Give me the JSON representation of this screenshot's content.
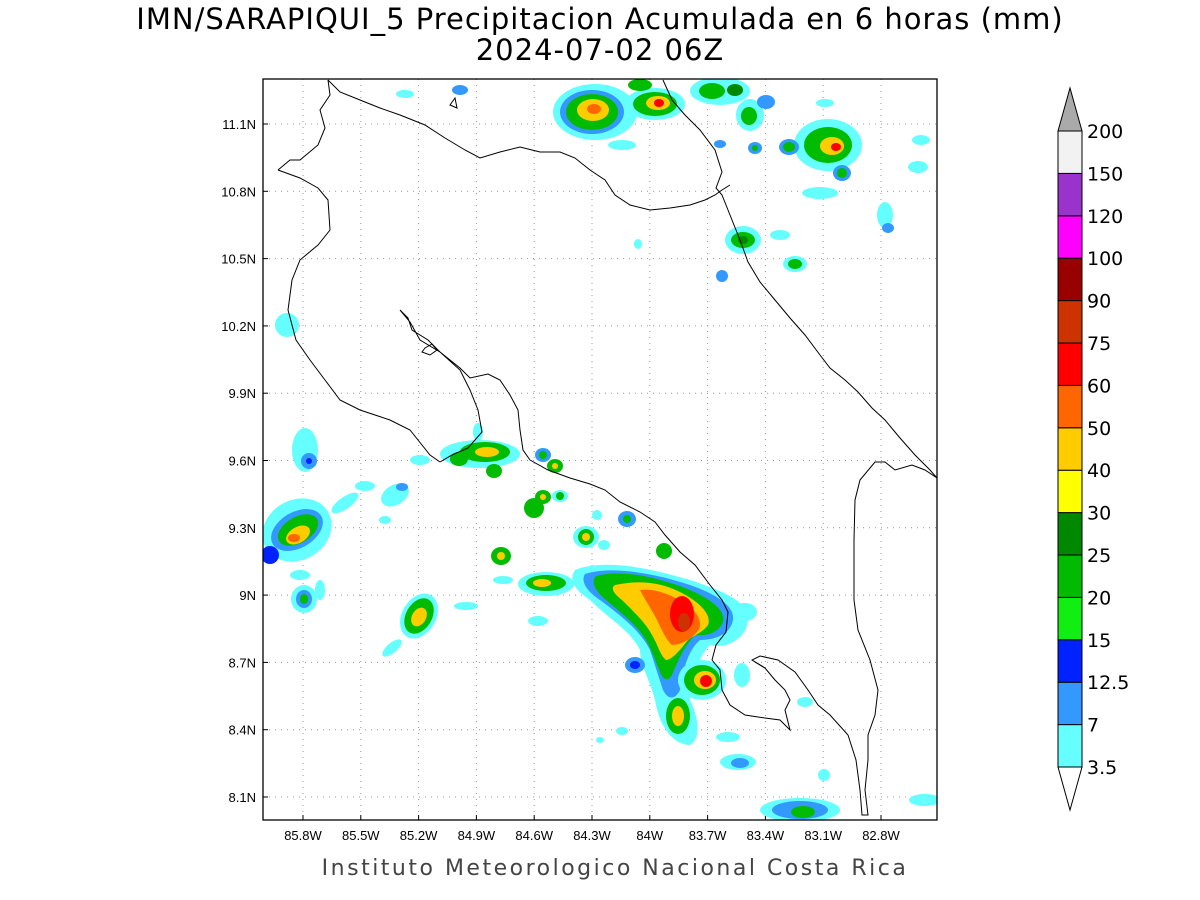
{
  "title": {
    "line1": "IMN/SARAPIQUI_5 Precipitacion Acumulada en 6 horas (mm)",
    "line2": "2024-07-02 06Z"
  },
  "footer": "Instituto Meteorologico Nacional Costa Rica",
  "map": {
    "lon_range": [
      -86.0,
      -83.0
    ],
    "lat_range": [
      8.0,
      11.3
    ],
    "lat_ticks": [
      "11.1N",
      "10.8N",
      "10.5N",
      "10.2N",
      "9.9N",
      "9.6N",
      "9.3N",
      "9N",
      "8.7N",
      "8.4N",
      "8.1N"
    ],
    "lon_ticks": [
      "85.8W",
      "85.5W",
      "85.2W",
      "84.9W",
      "84.6W",
      "84.3W",
      "84W",
      "83.7W",
      "83.4W",
      "83.1W",
      "82.8W"
    ],
    "grid": "dotted"
  },
  "colorbar": {
    "labels": [
      "3.5",
      "7",
      "12.5",
      "15",
      "20",
      "25",
      "30",
      "40",
      "50",
      "60",
      "75",
      "90",
      "100",
      "120",
      "150",
      "200"
    ],
    "colors": [
      "#66ffff",
      "#3399ff",
      "#0022ff",
      "#11ee11",
      "#00bb00",
      "#008800",
      "#ffff00",
      "#ffcc00",
      "#ff6600",
      "#ff0000",
      "#cc3300",
      "#990000",
      "#ff00ff",
      "#9933cc",
      "#f2f2f2"
    ],
    "top_arrow_color": "#aaaaaa",
    "bottom_arrow_color": "#ffffff"
  }
}
